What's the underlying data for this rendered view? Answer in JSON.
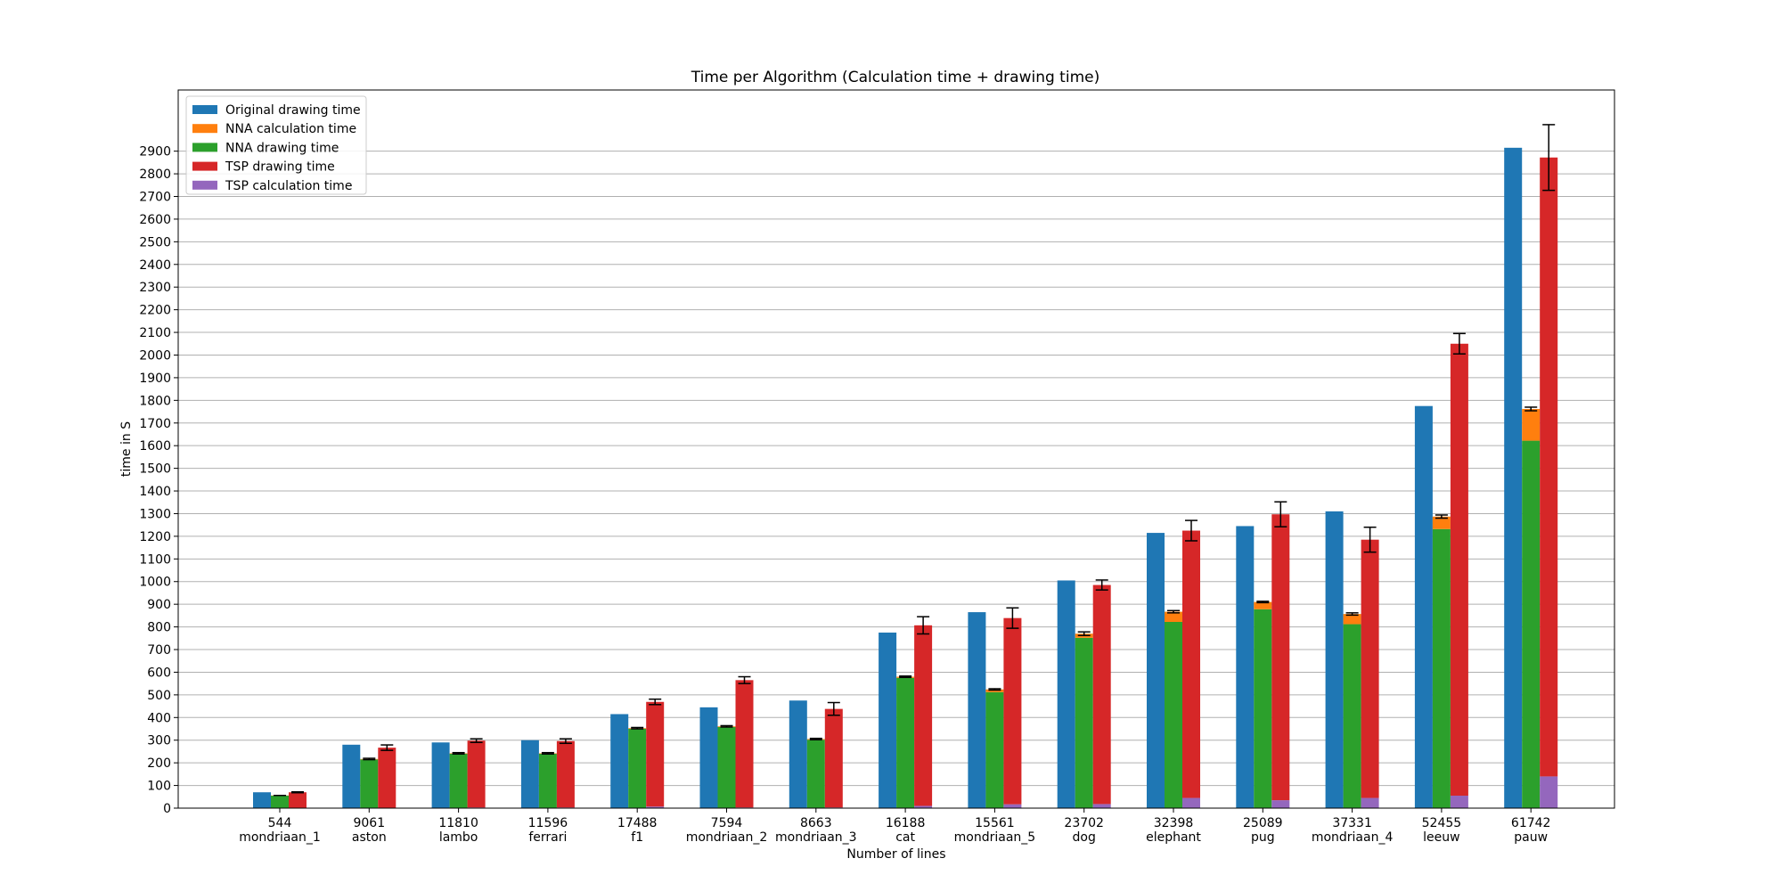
{
  "chart_data": {
    "type": "bar",
    "title": "Time per Algorithm (Calculation time + drawing time)",
    "xlabel": "Number of lines",
    "ylabel": "time in S",
    "ylim": [
      0,
      3170
    ],
    "yticks": [
      0,
      100,
      200,
      300,
      400,
      500,
      600,
      700,
      800,
      900,
      1000,
      1100,
      1200,
      1300,
      1400,
      1500,
      1600,
      1700,
      1800,
      1900,
      2000,
      2100,
      2200,
      2300,
      2400,
      2500,
      2600,
      2700,
      2800,
      2900
    ],
    "grid": "horizontal",
    "legend_position": "top-left",
    "categories": [
      {
        "lines": "544",
        "name": "mondriaan_1"
      },
      {
        "lines": "9061",
        "name": "aston"
      },
      {
        "lines": "11810",
        "name": "lambo"
      },
      {
        "lines": "11596",
        "name": "ferrari"
      },
      {
        "lines": "17488",
        "name": "f1"
      },
      {
        "lines": "7594",
        "name": "mondriaan_2"
      },
      {
        "lines": "8663",
        "name": "mondriaan_3"
      },
      {
        "lines": "16188",
        "name": "cat"
      },
      {
        "lines": "15561",
        "name": "mondriaan_5"
      },
      {
        "lines": "23702",
        "name": "dog"
      },
      {
        "lines": "32398",
        "name": "elephant"
      },
      {
        "lines": "25089",
        "name": "pug"
      },
      {
        "lines": "37331",
        "name": "mondriaan_4"
      },
      {
        "lines": "52455",
        "name": "leeuw"
      },
      {
        "lines": "61742",
        "name": "pauw"
      }
    ],
    "series": [
      {
        "name": "Original drawing time",
        "color": "#1f77b4",
        "values": [
          70,
          280,
          290,
          300,
          415,
          445,
          475,
          775,
          865,
          1005,
          1215,
          1245,
          1310,
          1775,
          2915
        ]
      },
      {
        "name": "NNA calculation time",
        "color": "#ff7f0e",
        "values": [
          1,
          2,
          2,
          2,
          3,
          3,
          3,
          5,
          12,
          18,
          45,
          32,
          45,
          55,
          140
        ]
      },
      {
        "name": "NNA drawing time",
        "color": "#2ca02c",
        "values": [
          55,
          215,
          240,
          240,
          350,
          358,
          302,
          575,
          512,
          752,
          822,
          878,
          812,
          1232,
          1622
        ]
      },
      {
        "name": "TSP drawing time",
        "color": "#d62728",
        "values": [
          69,
          265,
          295,
          293,
          462,
          562,
          435,
          797,
          822,
          967,
          1180,
          1262,
          1140,
          1995,
          2732
        ]
      },
      {
        "name": "TSP calculation time",
        "color": "#9467bd",
        "values": [
          1,
          2,
          3,
          3,
          7,
          3,
          3,
          10,
          17,
          18,
          45,
          35,
          45,
          55,
          140
        ]
      }
    ],
    "nna_error": [
      0,
      3,
      3,
      3,
      3,
      3,
      3,
      3,
      3,
      8,
      5,
      3,
      5,
      7,
      8
    ],
    "tsp_error": [
      2,
      12,
      8,
      10,
      12,
      15,
      28,
      38,
      45,
      22,
      45,
      55,
      55,
      45,
      145
    ]
  }
}
